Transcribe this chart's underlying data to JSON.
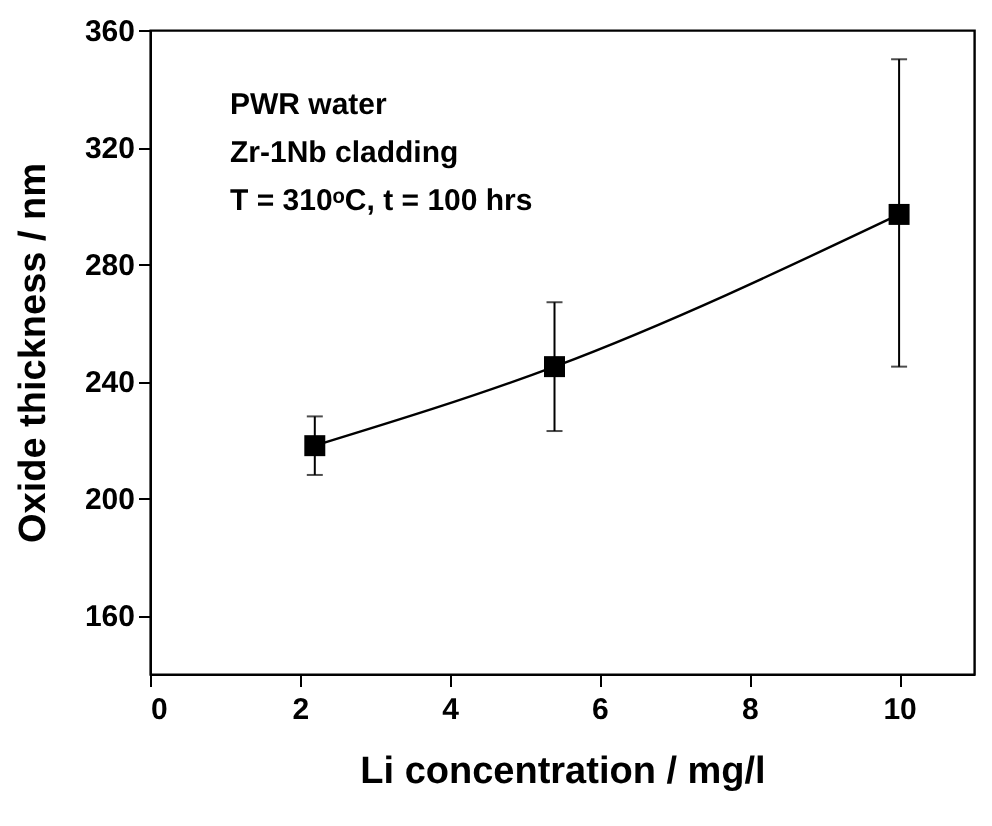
{
  "chart_data": {
    "type": "line",
    "xlabel": "Li concentration / mg/l",
    "ylabel": "Oxide thickness / nm",
    "annotations": [
      "PWR water",
      "Zr-1Nb cladding",
      "T = 310ᵒC, t = 100 hrs"
    ],
    "x": [
      2.2,
      5.4,
      10
    ],
    "series": [
      {
        "color": "#000000",
        "values": [
          218,
          245,
          297
        ],
        "errors": [
          [
            208,
            228
          ],
          [
            223,
            267
          ],
          [
            245,
            350
          ]
        ]
      }
    ],
    "xlim": [
      0,
      11
    ],
    "xticks": [
      0,
      2,
      4,
      6,
      8,
      10
    ],
    "ylim": [
      140,
      360
    ],
    "yticks": [
      160,
      200,
      240,
      280,
      320,
      360
    ],
    "grid": false,
    "marker": "square",
    "line_style": "solid"
  }
}
